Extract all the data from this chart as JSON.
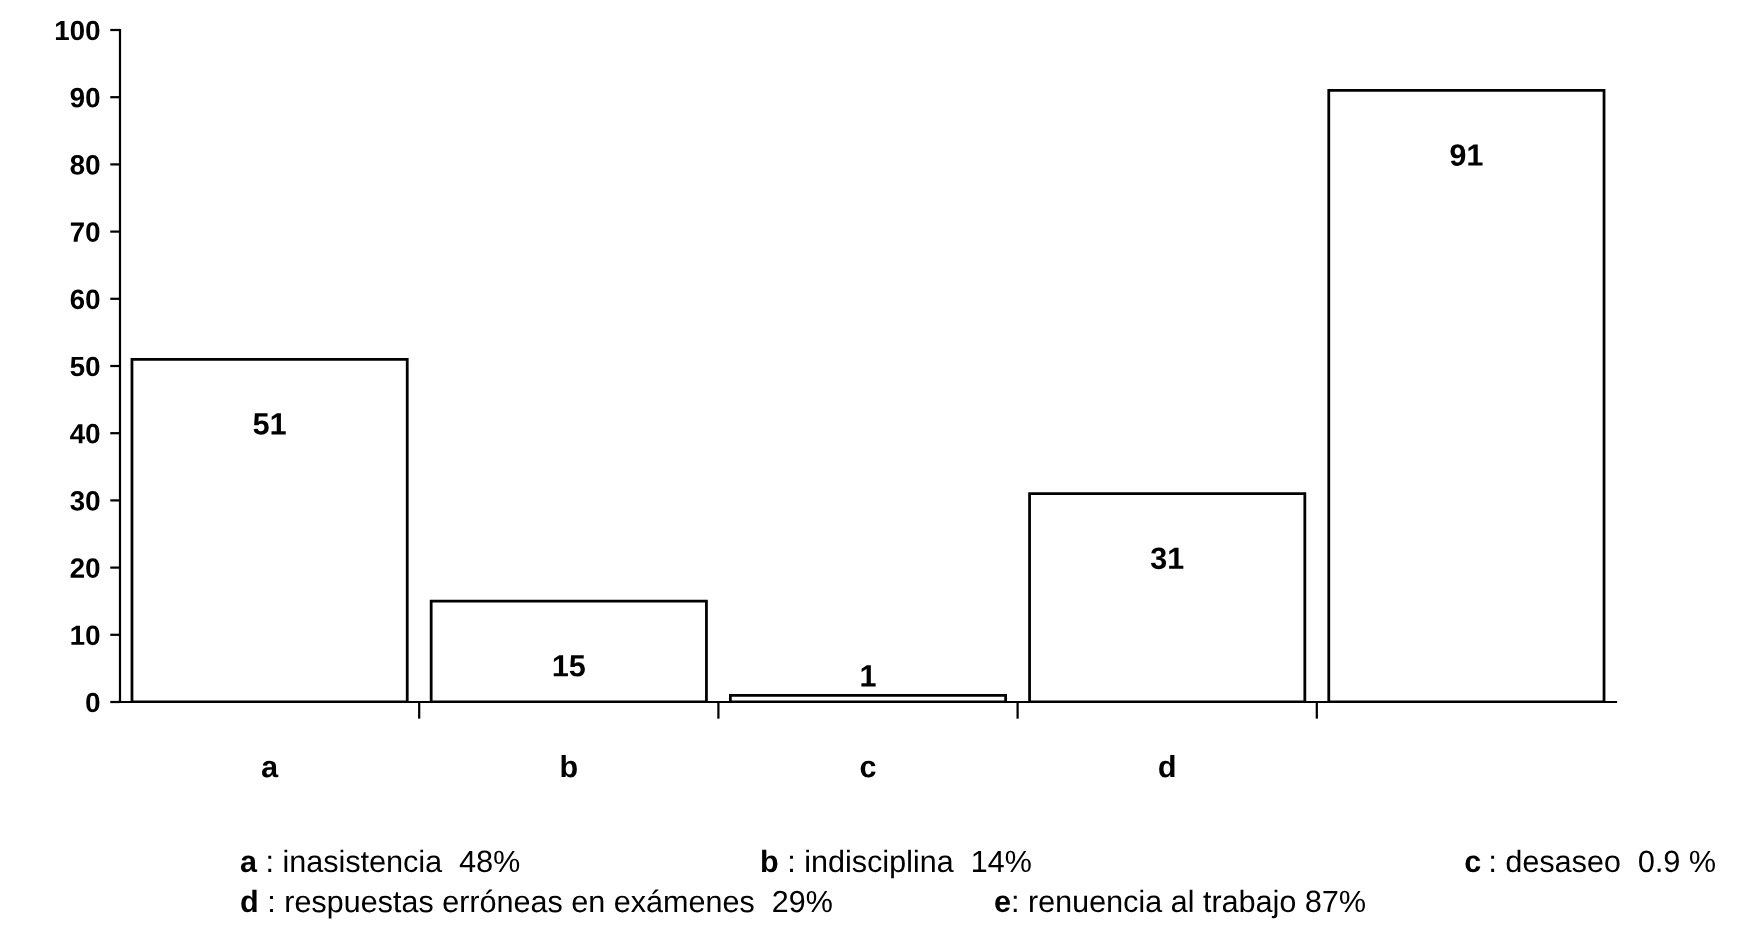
{
  "chart_data": {
    "type": "bar",
    "categories": [
      "a",
      "b",
      "c",
      "d",
      null
    ],
    "values": [
      51,
      15,
      1,
      31,
      91
    ],
    "color": "#ffffff",
    "ylim": [
      0,
      100
    ],
    "yticks": [
      0,
      10,
      20,
      30,
      40,
      50,
      60,
      70,
      80,
      90,
      100
    ],
    "data_labels": true,
    "grid": false,
    "legend": false,
    "annotations": [
      "a : inasistencia  48%",
      "b : indisciplina  14%",
      "c : desaseo  0.9 %",
      "d : respuestas erróneas en exámenes  29%",
      "e: renuencia al trabajo 87%"
    ]
  }
}
